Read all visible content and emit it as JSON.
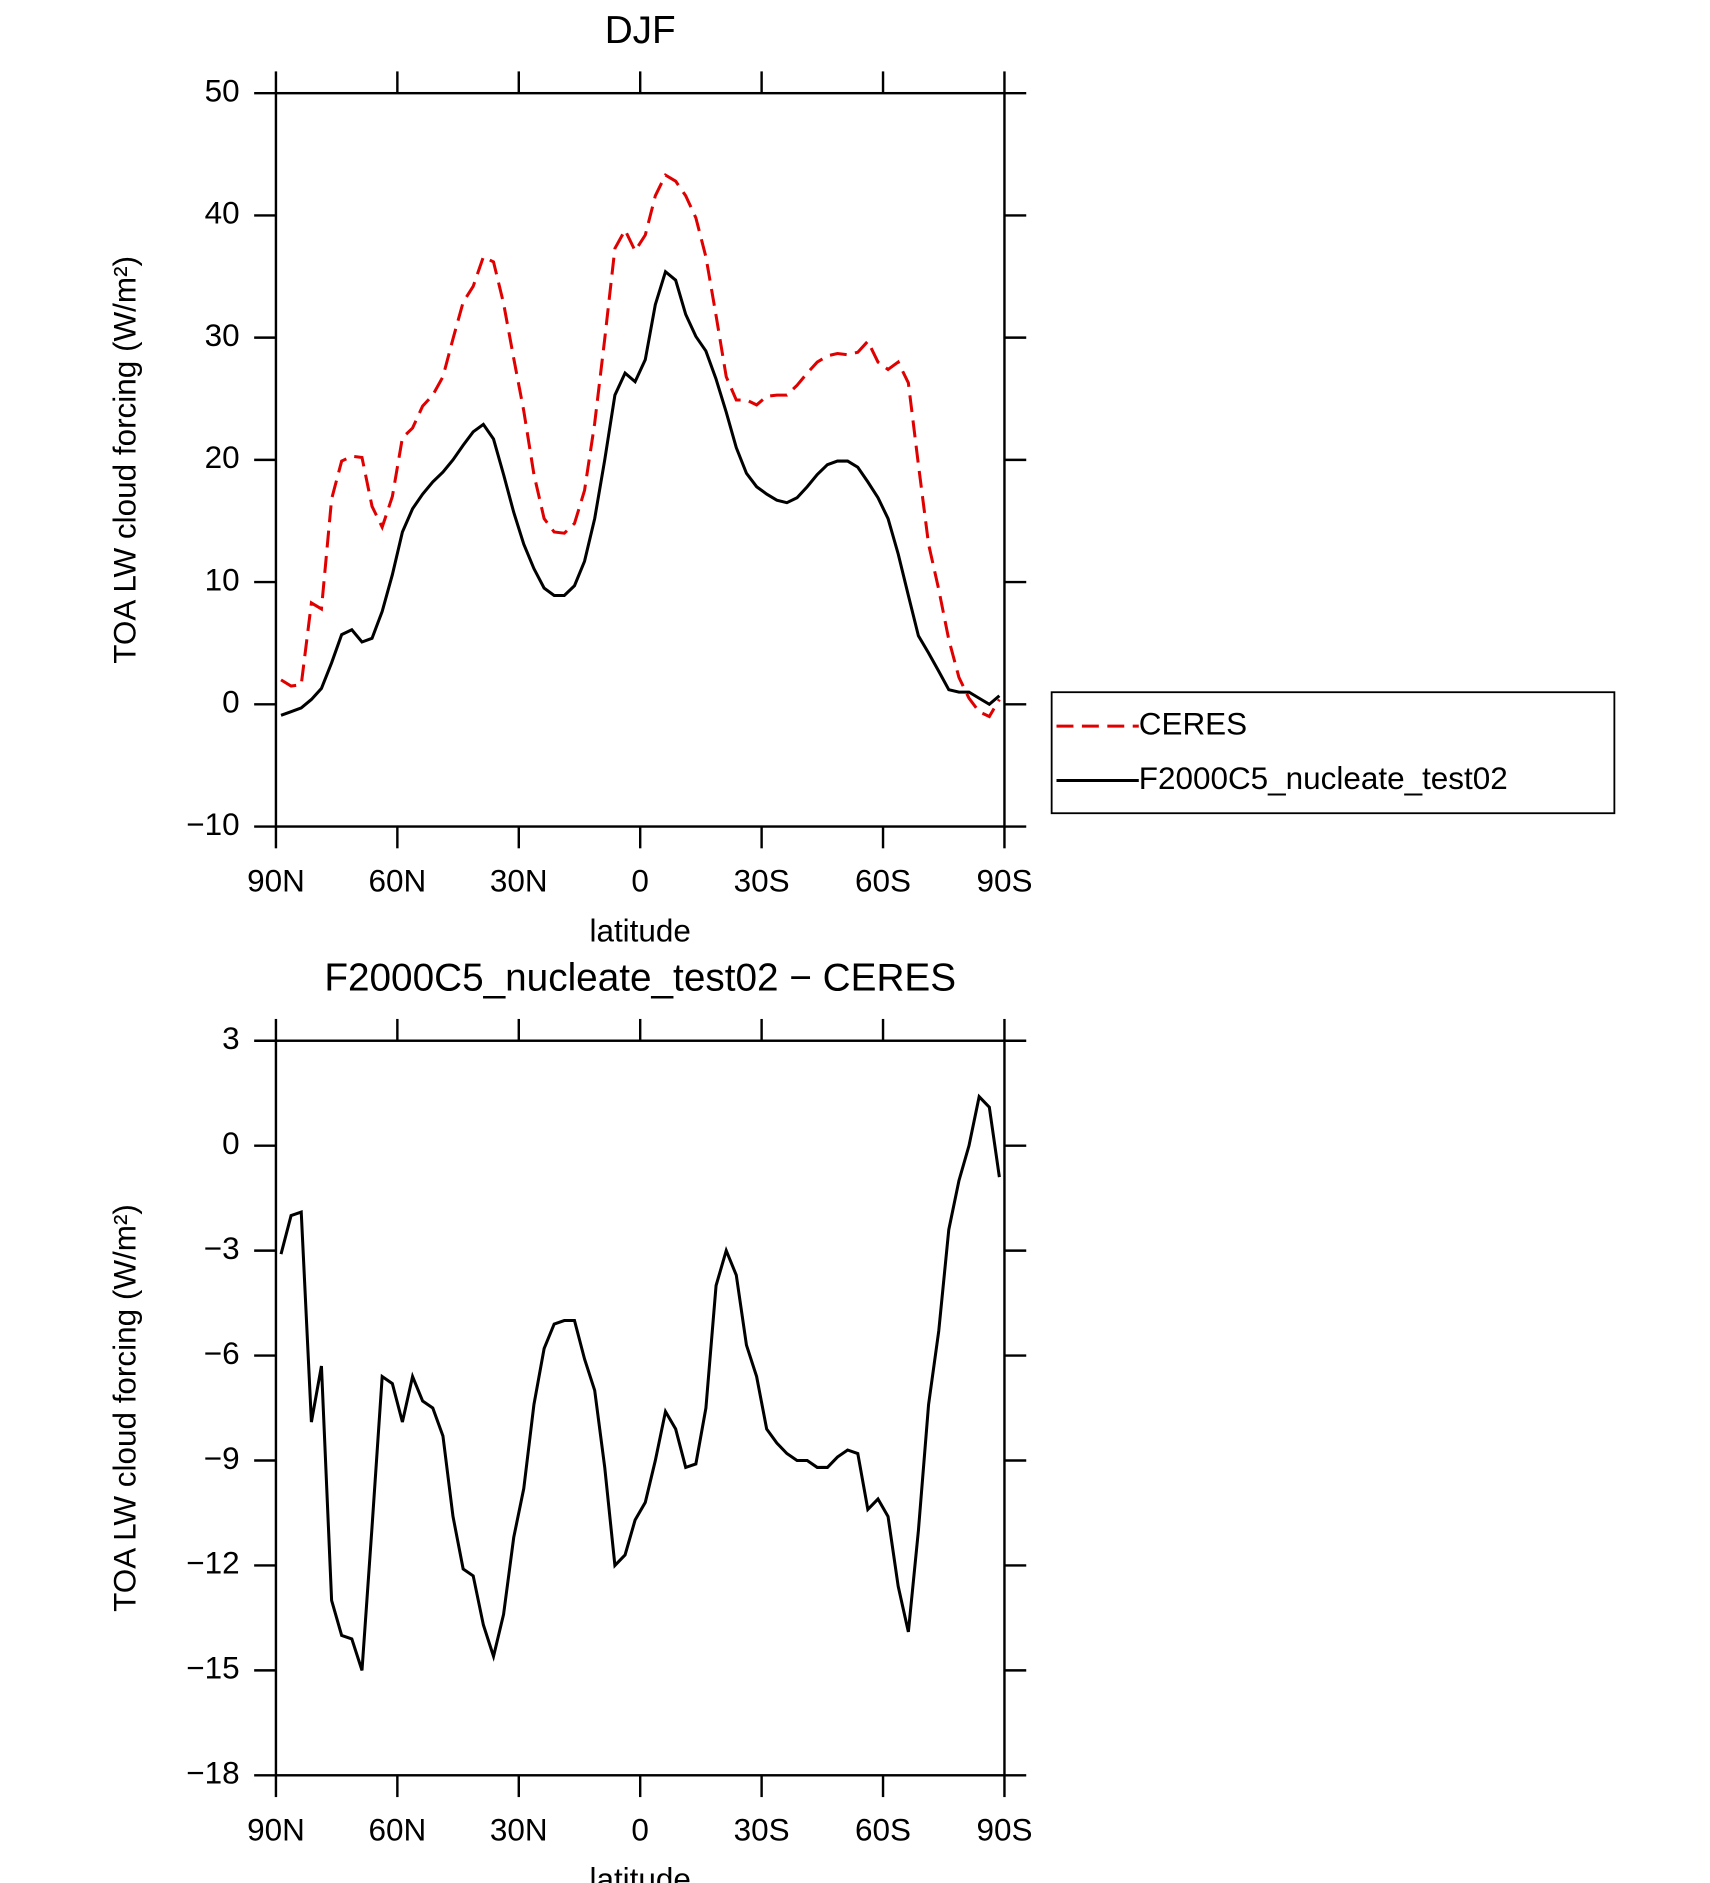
{
  "chart_data": [
    {
      "type": "line",
      "title": "DJF",
      "xlabel": "latitude",
      "ylabel": "TOA LW cloud forcing (W/m²)",
      "xlim": [
        90,
        -90
      ],
      "ylim": [
        -10,
        50
      ],
      "xticks": [
        {
          "value": 90,
          "label": "90N"
        },
        {
          "value": 60,
          "label": "60N"
        },
        {
          "value": 30,
          "label": "30N"
        },
        0,
        {
          "value": -30,
          "label": "30S"
        },
        {
          "value": -60,
          "label": "60S"
        },
        {
          "value": -90,
          "label": "90S"
        }
      ],
      "yticks": [
        {
          "value": -10,
          "label": "−10"
        },
        0,
        10,
        20,
        30,
        40,
        50
      ],
      "legend": "right",
      "x": [
        88.75,
        86.25,
        83.75,
        81.25,
        78.75,
        76.25,
        73.75,
        71.25,
        68.75,
        66.25,
        63.75,
        61.25,
        58.75,
        56.25,
        53.75,
        51.25,
        48.75,
        46.25,
        43.75,
        41.25,
        38.75,
        36.25,
        33.75,
        31.25,
        28.75,
        26.25,
        23.75,
        21.25,
        18.75,
        16.25,
        13.75,
        11.25,
        8.75,
        6.25,
        3.75,
        1.25,
        -1.25,
        -3.75,
        -6.25,
        -8.75,
        -11.25,
        -13.75,
        -16.25,
        -18.75,
        -21.25,
        -23.75,
        -26.25,
        -28.75,
        -31.25,
        -33.75,
        -36.25,
        -38.75,
        -41.25,
        -43.75,
        -46.25,
        -48.75,
        -51.25,
        -53.75,
        -56.25,
        -58.75,
        -61.25,
        -63.75,
        -66.25,
        -68.75,
        -71.25,
        -73.75,
        -76.25,
        -78.75,
        -81.25,
        -83.75,
        -86.25,
        -88.75
      ],
      "series": [
        {
          "name": "CERES",
          "color": "#e00000",
          "style": "dashed",
          "values": [
            2.0,
            1.5,
            1.6,
            8.3,
            7.8,
            16.8,
            19.9,
            20.3,
            20.2,
            16.2,
            14.5,
            17.0,
            21.8,
            22.6,
            24.4,
            25.3,
            26.8,
            29.9,
            32.9,
            34.2,
            36.6,
            36.2,
            32.8,
            28.3,
            24.0,
            18.8,
            15.2,
            14.1,
            14.0,
            14.8,
            17.5,
            23.0,
            29.9,
            37.3,
            38.8,
            37.1,
            38.4,
            41.6,
            43.3,
            42.8,
            41.6,
            39.8,
            36.6,
            31.8,
            26.8,
            24.9,
            24.9,
            24.5,
            25.2,
            25.3,
            25.3,
            26.1,
            27.1,
            28.0,
            28.5,
            28.7,
            28.6,
            28.8,
            29.7,
            28.0,
            27.4,
            28.0,
            26.3,
            19.6,
            13.1,
            9.4,
            5.3,
            2.2,
            0.5,
            -0.6,
            -1.0,
            0.4
          ]
        },
        {
          "name": "F2000C5_nucleate_test02",
          "color": "#000000",
          "style": "solid",
          "values": [
            -0.9,
            -0.6,
            -0.3,
            0.4,
            1.3,
            3.4,
            5.7,
            6.1,
            5.1,
            5.4,
            7.6,
            10.6,
            14.1,
            16.0,
            17.2,
            18.2,
            19.0,
            20.0,
            21.2,
            22.3,
            22.9,
            21.7,
            18.8,
            15.7,
            13.1,
            11.1,
            9.5,
            8.9,
            8.9,
            9.7,
            11.7,
            15.2,
            20.0,
            25.3,
            27.1,
            26.4,
            28.2,
            32.7,
            35.4,
            34.7,
            31.9,
            30.1,
            28.9,
            26.6,
            23.9,
            21.0,
            18.9,
            17.8,
            17.2,
            16.7,
            16.5,
            16.9,
            17.8,
            18.8,
            19.6,
            19.9,
            19.9,
            19.4,
            18.2,
            16.9,
            15.2,
            12.3,
            8.9,
            5.6,
            4.2,
            2.7,
            1.2,
            1.0,
            1.0,
            0.5,
            0.0,
            0.7
          ]
        }
      ]
    },
    {
      "type": "line",
      "title": "F2000C5_nucleate_test02 − CERES",
      "xlabel": "latitude",
      "ylabel": "TOA LW cloud forcing (W/m²)",
      "xlim": [
        90,
        -90
      ],
      "ylim": [
        -18,
        3
      ],
      "xticks": [
        {
          "value": 90,
          "label": "90N"
        },
        {
          "value": 60,
          "label": "60N"
        },
        {
          "value": 30,
          "label": "30N"
        },
        0,
        {
          "value": -30,
          "label": "30S"
        },
        {
          "value": -60,
          "label": "60S"
        },
        {
          "value": -90,
          "label": "90S"
        }
      ],
      "yticks": [
        {
          "value": -18,
          "label": "−18"
        },
        {
          "value": -15,
          "label": "−15"
        },
        {
          "value": -12,
          "label": "−12"
        },
        {
          "value": -9,
          "label": "−9"
        },
        {
          "value": -6,
          "label": "−6"
        },
        {
          "value": -3,
          "label": "−3"
        },
        0,
        3
      ],
      "x": [
        88.75,
        86.25,
        83.75,
        81.25,
        78.75,
        76.25,
        73.75,
        71.25,
        68.75,
        66.25,
        63.75,
        61.25,
        58.75,
        56.25,
        53.75,
        51.25,
        48.75,
        46.25,
        43.75,
        41.25,
        38.75,
        36.25,
        33.75,
        31.25,
        28.75,
        26.25,
        23.75,
        21.25,
        18.75,
        16.25,
        13.75,
        11.25,
        8.75,
        6.25,
        3.75,
        1.25,
        -1.25,
        -3.75,
        -6.25,
        -8.75,
        -11.25,
        -13.75,
        -16.25,
        -18.75,
        -21.25,
        -23.75,
        -26.25,
        -28.75,
        -31.25,
        -33.75,
        -36.25,
        -38.75,
        -41.25,
        -43.75,
        -46.25,
        -48.75,
        -51.25,
        -53.75,
        -56.25,
        -58.75,
        -61.25,
        -63.75,
        -66.25,
        -68.75,
        -71.25,
        -73.75,
        -76.25,
        -78.75,
        -81.25,
        -83.75,
        -86.25,
        -88.75
      ],
      "series": [
        {
          "color": "#000000",
          "style": "solid",
          "values": [
            -3.1,
            -2.0,
            -1.9,
            -7.9,
            -6.3,
            -13.0,
            -14.0,
            -14.1,
            -15.0,
            -10.9,
            -6.6,
            -6.8,
            -7.9,
            -6.6,
            -7.3,
            -7.5,
            -8.3,
            -10.6,
            -12.1,
            -12.3,
            -13.7,
            -14.6,
            -13.4,
            -11.2,
            -9.8,
            -7.4,
            -5.8,
            -5.1,
            -5.0,
            -5.0,
            -6.1,
            -7.0,
            -9.2,
            -12.0,
            -11.7,
            -10.7,
            -10.2,
            -9.0,
            -7.6,
            -8.1,
            -9.2,
            -9.1,
            -7.5,
            -4.0,
            -3.0,
            -3.7,
            -5.7,
            -6.6,
            -8.1,
            -8.5,
            -8.8,
            -9.0,
            -9.0,
            -9.2,
            -9.2,
            -8.9,
            -8.7,
            -8.8,
            -10.4,
            -10.1,
            -10.6,
            -12.6,
            -13.9,
            -11.0,
            -7.4,
            -5.3,
            -2.4,
            -1.0,
            0.0,
            1.4,
            1.1,
            -0.9
          ]
        }
      ]
    }
  ]
}
